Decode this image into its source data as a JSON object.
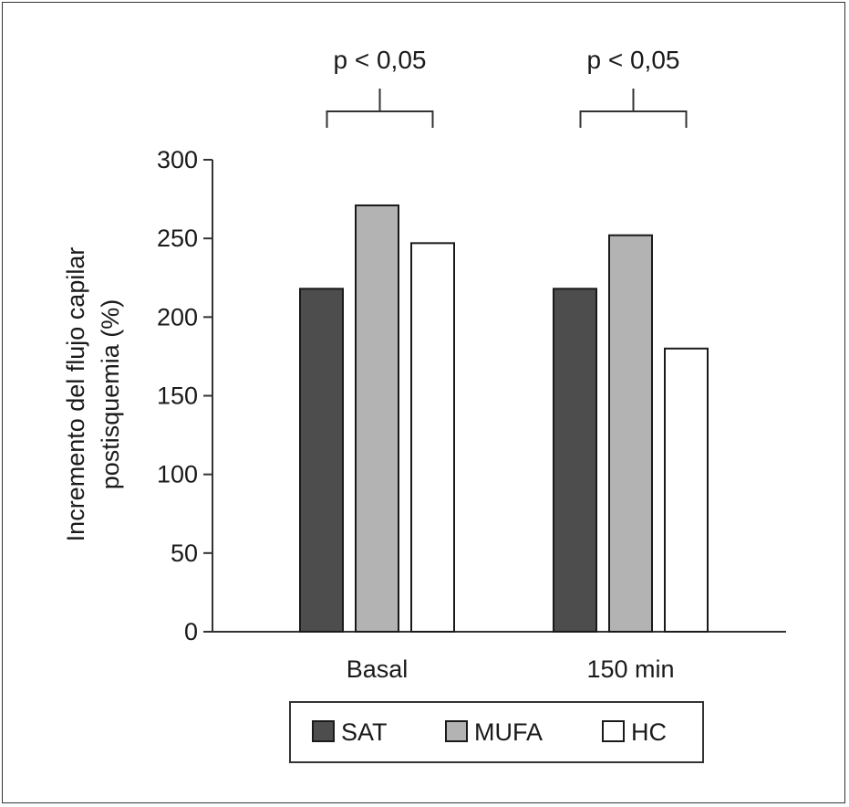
{
  "chart_data": {
    "type": "bar",
    "categories": [
      "Basal",
      "150 min"
    ],
    "series": [
      {
        "name": "SAT",
        "values": [
          218,
          218
        ],
        "color": "#4d4d4d"
      },
      {
        "name": "MUFA",
        "values": [
          271,
          252
        ],
        "color": "#b3b3b3"
      },
      {
        "name": "HC",
        "values": [
          247,
          180
        ],
        "color": "#ffffff"
      }
    ],
    "ylabel_lines": [
      "Incremento del flujo capilar",
      "postisquemia (%)"
    ],
    "ylim": [
      0,
      300
    ],
    "yticks": [
      "0",
      "50",
      "100",
      "150",
      "200",
      "250",
      "300"
    ],
    "ytick_values": [
      0,
      50,
      100,
      150,
      200,
      250,
      300
    ],
    "annotations": [
      {
        "text": "p < 0,05",
        "category": "Basal",
        "bracket_series": [
          "SAT",
          "HC"
        ]
      },
      {
        "text": "p < 0,05",
        "category": "150 min",
        "bracket_series": [
          "SAT",
          "HC"
        ]
      }
    ],
    "grid": false,
    "legend_position": "bottom"
  }
}
